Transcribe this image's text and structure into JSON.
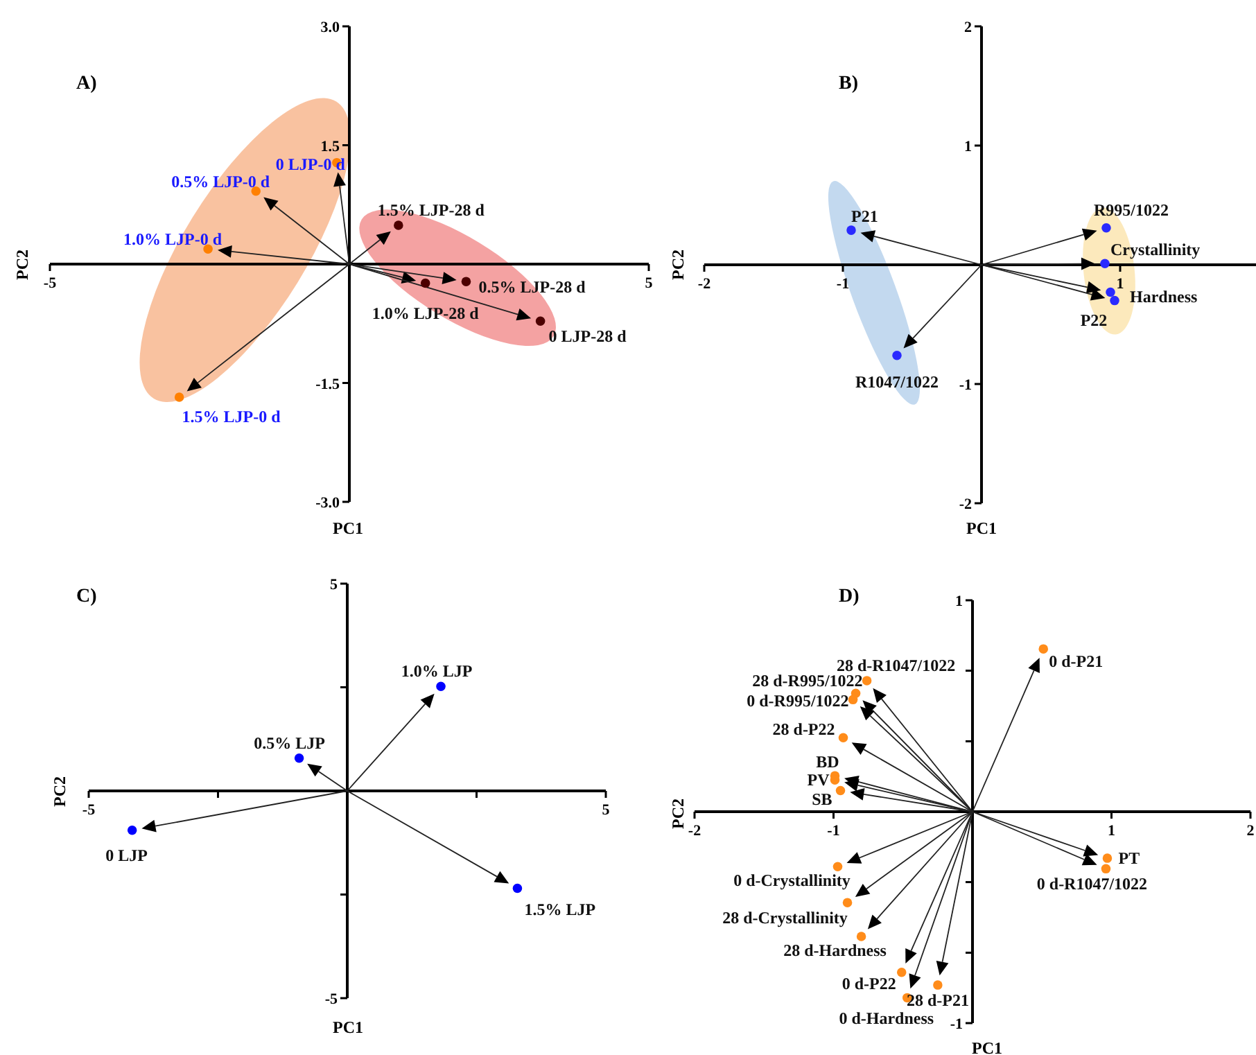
{
  "chart_data": [
    {
      "type": "scatter",
      "title": "A)",
      "xlabel": "PC1",
      "ylabel": "PC2",
      "marker": "circle",
      "xlim": [
        -5,
        5
      ],
      "xticks": [
        -5,
        5
      ],
      "ylim": [
        -3,
        3
      ],
      "yticks": [
        {
          "value": -3,
          "label": "-3.0"
        },
        {
          "value": -1.5,
          "label": "-1.5"
        },
        {
          "value": 1.5,
          "label": "1.5"
        },
        {
          "value": 3,
          "label": "3.0"
        }
      ],
      "series": [
        {
          "color": "#ff8000",
          "x": [
            -0.21,
            -1.56,
            -2.36,
            -2.84
          ],
          "values": [
            1.28,
            0.92,
            0.19,
            -1.68
          ]
        },
        {
          "color": "#4d0000",
          "x": [
            0.82,
            1.27,
            1.95,
            3.19
          ],
          "values": [
            0.49,
            -0.24,
            -0.22,
            -0.72
          ]
        }
      ],
      "annotations": [
        {
          "text": "0 LJP-0 d",
          "x": -0.21,
          "y": 1.28
        },
        {
          "text": "0.5% LJP-0 d",
          "x": -1.56,
          "y": 0.92
        },
        {
          "text": "1.0% LJP-0 d",
          "x": -2.36,
          "y": 0.19
        },
        {
          "text": "1.5% LJP-0 d",
          "x": -2.84,
          "y": -1.68
        },
        {
          "text": "1.5% LJP-28 d",
          "x": 0.82,
          "y": 0.49
        },
        {
          "text": "1.0% LJP-28 d",
          "x": 1.27,
          "y": -0.24
        },
        {
          "text": "0.5% LJP-28 d",
          "x": 1.95,
          "y": -0.22
        },
        {
          "text": "0 LJP-28 d",
          "x": 3.19,
          "y": -0.72
        }
      ]
    },
    {
      "type": "scatter",
      "title": "B)",
      "xlabel": "PC1",
      "ylabel": "PC2",
      "marker": "circle",
      "xlim": [
        -2,
        2
      ],
      "xticks": [
        -2,
        -1,
        1
      ],
      "ylim": [
        -2,
        2
      ],
      "yticks": [
        -2,
        -1,
        1,
        2
      ],
      "series": [
        {
          "color": "#2a2aff",
          "x": [
            -0.94,
            -0.61
          ],
          "values": [
            0.29,
            -0.76
          ]
        },
        {
          "color": "#2a2aff",
          "x": [
            0.9,
            0.89,
            0.93,
            0.96
          ],
          "values": [
            0.31,
            0.01,
            -0.23,
            -0.3
          ]
        }
      ],
      "annotations": [
        {
          "text": "P21",
          "x": -0.94,
          "y": 0.29
        },
        {
          "text": "R1047/1022",
          "x": -0.61,
          "y": -0.76
        },
        {
          "text": "R995/1022",
          "x": 0.9,
          "y": 0.31
        },
        {
          "text": "Crystallinity",
          "x": 0.89,
          "y": 0.01
        },
        {
          "text": "Hardness",
          "x": 0.93,
          "y": -0.23
        },
        {
          "text": "P22",
          "x": 0.96,
          "y": -0.3
        }
      ]
    },
    {
      "type": "scatter",
      "title": "C)",
      "xlabel": "PC1",
      "ylabel": "PC2",
      "marker": "circle",
      "xlim": [
        -5,
        5
      ],
      "xticks": [
        -5,
        {
          "value": -2.5,
          "label": null
        },
        {
          "value": 2.5,
          "label": null
        },
        5
      ],
      "ylim": [
        -5,
        5
      ],
      "yticks": [
        -5,
        {
          "value": -2.5,
          "label": null
        },
        {
          "value": 2.5,
          "label": null
        },
        5
      ],
      "series": [
        {
          "color": "#0000ff",
          "x": [
            -4.16,
            -0.93,
            1.81,
            3.29
          ],
          "values": [
            -0.95,
            0.79,
            2.52,
            -2.35
          ]
        }
      ],
      "annotations": [
        {
          "text": "0 LJP",
          "x": -4.16,
          "y": -0.95
        },
        {
          "text": "0.5% LJP",
          "x": -0.93,
          "y": 0.79
        },
        {
          "text": "1.0% LJP",
          "x": 1.81,
          "y": 2.52
        },
        {
          "text": "1.5% LJP",
          "x": 3.29,
          "y": -2.35
        }
      ]
    },
    {
      "type": "scatter",
      "title": "D)",
      "xlabel": "PC1",
      "ylabel": "PC2",
      "marker": "circle",
      "xlim": [
        -2,
        2
      ],
      "xticks": [
        -2,
        -1,
        1,
        2
      ],
      "ylim": [
        -1,
        1
      ],
      "yticks": [
        -1,
        {
          "value": -0.667,
          "label": null
        },
        {
          "value": -0.333,
          "label": null
        },
        {
          "value": 0.333,
          "label": null
        },
        {
          "value": 0.667,
          "label": null
        },
        1
      ],
      "series": [
        {
          "color": "#ff8c1a",
          "x": [
            0.51,
            -0.76,
            -0.84,
            -0.86,
            -0.93,
            -0.99,
            -0.99,
            -0.95,
            0.97,
            0.96,
            -0.97,
            -0.9,
            -0.8,
            -0.51,
            -0.47,
            -0.25
          ],
          "values": [
            0.77,
            0.62,
            0.56,
            0.53,
            0.35,
            0.17,
            0.15,
            0.1,
            -0.22,
            -0.27,
            -0.26,
            -0.43,
            -0.59,
            -0.76,
            -0.88,
            -0.82
          ]
        }
      ],
      "annotations": [
        {
          "text": "0 d-P21",
          "x": 0.51,
          "y": 0.77
        },
        {
          "text": "28 d-R1047/1022",
          "x": -0.76,
          "y": 0.62
        },
        {
          "text": "28 d-R995/1022",
          "x": -0.84,
          "y": 0.56
        },
        {
          "text": "0 d-R995/1022",
          "x": -0.86,
          "y": 0.53
        },
        {
          "text": "28 d-P22",
          "x": -0.93,
          "y": 0.35
        },
        {
          "text": "BD",
          "x": -0.99,
          "y": 0.17
        },
        {
          "text": "PV",
          "x": -0.99,
          "y": 0.15
        },
        {
          "text": "SB",
          "x": -0.95,
          "y": 0.1
        },
        {
          "text": "PT",
          "x": 0.97,
          "y": -0.22
        },
        {
          "text": "0 d-R1047/1022",
          "x": 0.96,
          "y": -0.27
        },
        {
          "text": "0 d-Crystallinity",
          "x": -0.97,
          "y": -0.26
        },
        {
          "text": "28 d-Crystallinity",
          "x": -0.9,
          "y": -0.43
        },
        {
          "text": "28 d-Hardness",
          "x": -0.8,
          "y": -0.59
        },
        {
          "text": "0 d-P22",
          "x": -0.51,
          "y": -0.76
        },
        {
          "text": "0 d-Hardness",
          "x": -0.47,
          "y": -0.88
        },
        {
          "text": "28 d-P21",
          "x": -0.25,
          "y": -0.82
        }
      ]
    }
  ]
}
